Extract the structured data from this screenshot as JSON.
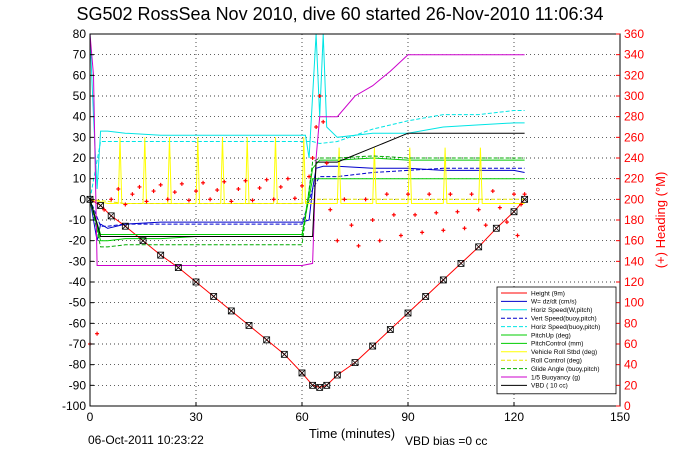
{
  "title": "SG502 RossSea Nov 2010, dive 60 started 26-Nov-2010 11:06:34",
  "footer": {
    "left": "06-Oct-2011 10:23:22",
    "right": "VBD bias =0 cc"
  },
  "colors": {
    "height": "#ff0000",
    "w": "#0000cc",
    "horiz_speed": "#00e5e5",
    "vert_speed": "#0000cc",
    "pitch_up": "#00cc00",
    "pitch_control": "#00cc00",
    "roll_stbd": "#ffff00",
    "roll_control": "#e5e500",
    "glide_angle": "#00aa00",
    "buoyancy": "#cc00cc",
    "vbd": "#000000",
    "heading": "#ff0000",
    "right_axis": "#ff0000"
  },
  "chart_data": {
    "type": "line",
    "title": "SG502 RossSea Nov 2010, dive 60 started 26-Nov-2010 11:06:34",
    "xlabel": "Time (minutes)",
    "ylabel": "",
    "ylabel_right": "(+) Heading (°M)",
    "xlim": [
      0,
      150
    ],
    "ylim": [
      -100,
      80
    ],
    "ylim_right": [
      0,
      360
    ],
    "xticks": [
      0,
      30,
      60,
      90,
      120,
      150
    ],
    "yticks": [
      -100,
      -90,
      -80,
      -70,
      -60,
      -50,
      -40,
      -30,
      -20,
      -10,
      0,
      10,
      20,
      30,
      40,
      50,
      60,
      70,
      80
    ],
    "yticks_right": [
      0,
      20,
      40,
      60,
      80,
      100,
      120,
      140,
      160,
      180,
      200,
      220,
      240,
      260,
      280,
      300,
      320,
      340,
      360
    ],
    "grid": true,
    "legend_position": "bottom-right",
    "legend": [
      "Height (9m)",
      "W= dz/dt (cm/s)",
      "Horiz Speed(W,pitch)",
      "Vert Speed(buoy,pitch)",
      "Horiz Speed(buoy,pitch)",
      "PitchUp (deg)",
      "PitchControl (mm)",
      "Vehicle Roll Stbd (deg)",
      "Roll Control (deg)",
      "Glide Angle (buoy,pitch)",
      "1/5 Buoyancy (g)",
      "VBD ( 10 cc)"
    ],
    "series": [
      {
        "name": "Height (9m)",
        "x": [
          0,
          3,
          6,
          10,
          15,
          20,
          25,
          30,
          35,
          40,
          45,
          50,
          55,
          60,
          63,
          65,
          67,
          70,
          75,
          80,
          85,
          90,
          95,
          100,
          105,
          110,
          115,
          120,
          123
        ],
        "y": [
          0,
          -3,
          -8,
          -13,
          -20,
          -27,
          -33,
          -40,
          -47,
          -54,
          -61,
          -68,
          -75,
          -84,
          -90,
          -91,
          -90,
          -85,
          -79,
          -71,
          -63,
          -55,
          -47,
          -39,
          -31,
          -23,
          -14,
          -6,
          0
        ]
      },
      {
        "name": "W= dz/dt (cm/s)",
        "x": [
          0,
          1,
          2,
          3,
          5,
          10,
          20,
          30,
          40,
          50,
          60,
          62,
          63,
          64,
          66,
          70,
          80,
          90,
          100,
          110,
          120,
          123
        ],
        "y": [
          0,
          -10,
          -20,
          -12,
          -14,
          -12,
          -11,
          -11,
          -11,
          -11,
          -11,
          -10,
          5,
          15,
          16,
          16,
          15,
          15,
          14,
          14,
          14,
          13
        ]
      },
      {
        "name": "Horiz Speed(W,pitch)",
        "x": [
          0,
          1,
          2,
          3,
          5,
          10,
          20,
          30,
          40,
          50,
          60,
          61,
          62,
          64,
          65,
          66,
          67,
          70,
          80,
          90,
          100,
          110,
          120,
          123
        ],
        "y": [
          80,
          40,
          5,
          33,
          33,
          32,
          31,
          31,
          31,
          31,
          31,
          31,
          20,
          80,
          40,
          80,
          35,
          30,
          32,
          32,
          35,
          36,
          37,
          37
        ]
      },
      {
        "name": "Vert Speed(buoy,pitch)",
        "x": [
          0,
          3,
          5,
          10,
          20,
          30,
          40,
          50,
          60,
          63,
          65,
          70,
          80,
          90,
          100,
          110,
          120,
          123
        ],
        "y": [
          0,
          -13,
          -13,
          -12,
          -12,
          -12,
          -12,
          -12,
          -12,
          5,
          11,
          11,
          13,
          14,
          15,
          15,
          15,
          15
        ]
      },
      {
        "name": "Horiz Speed(buoy,pitch)",
        "x": [
          0,
          3,
          5,
          10,
          20,
          30,
          40,
          50,
          60,
          63,
          65,
          70,
          80,
          90,
          100,
          110,
          120,
          123
        ],
        "y": [
          0,
          28,
          28,
          28,
          28,
          28,
          28,
          28,
          28,
          28,
          27,
          28,
          34,
          38,
          41,
          41,
          43,
          43
        ]
      },
      {
        "name": "PitchUp (deg)",
        "x": [
          0,
          3,
          5,
          10,
          20,
          30,
          40,
          50,
          60,
          63,
          65,
          70,
          80,
          90,
          100,
          110,
          120,
          123
        ],
        "y": [
          0,
          -20,
          -20,
          -19,
          -19,
          -18,
          -18,
          -18,
          -18,
          15,
          19,
          19,
          20,
          19,
          19,
          19,
          19,
          19
        ]
      },
      {
        "name": "PitchControl (mm)",
        "x": [
          0,
          3,
          5,
          10,
          20,
          30,
          40,
          50,
          60,
          63,
          65,
          70,
          80,
          90,
          100,
          110,
          120,
          123
        ],
        "y": [
          0,
          -17,
          -17,
          -17,
          -17,
          -17,
          -17,
          -17,
          -17,
          10,
          10,
          10,
          10,
          10,
          10,
          10,
          10,
          10
        ]
      },
      {
        "name": "Vehicle Roll Stbd (deg)",
        "x": [
          0,
          5,
          8,
          8.5,
          9,
          15,
          15.5,
          16,
          22,
          22.5,
          23,
          30,
          30.5,
          31,
          37,
          37.5,
          38,
          44,
          44.5,
          45,
          52,
          52.5,
          53,
          60,
          60.5,
          61,
          70,
          70.5,
          71,
          80,
          80.5,
          81,
          90,
          90.5,
          91,
          100,
          100.5,
          101,
          110,
          110.5,
          111,
          120,
          123
        ],
        "y": [
          0,
          -2,
          -2,
          30,
          -2,
          -2,
          30,
          -2,
          -2,
          30,
          -2,
          -2,
          30,
          -2,
          -2,
          30,
          -2,
          -2,
          30,
          -2,
          -2,
          30,
          -2,
          -2,
          30,
          -2,
          -2,
          25,
          -2,
          -2,
          25,
          -2,
          -2,
          25,
          -2,
          -2,
          25,
          -2,
          -2,
          25,
          -2,
          -2,
          -2
        ]
      },
      {
        "name": "Roll Control (deg)",
        "x": [
          0,
          10,
          20,
          30,
          40,
          50,
          60,
          63,
          70,
          80,
          90,
          100,
          110,
          120,
          123
        ],
        "y": [
          0,
          -2,
          -2,
          -2,
          -2,
          -2,
          -2,
          0,
          0,
          0,
          0,
          0,
          0,
          0,
          0
        ]
      },
      {
        "name": "Glide Angle (buoy,pitch)",
        "x": [
          0,
          3,
          5,
          10,
          20,
          30,
          40,
          50,
          60,
          63,
          65,
          70,
          80,
          90,
          100,
          110,
          120,
          123
        ],
        "y": [
          0,
          -23,
          -23,
          -22,
          -22,
          -22,
          -22,
          -22,
          -22,
          18,
          20,
          20,
          21,
          20,
          20,
          20,
          20,
          20
        ]
      },
      {
        "name": "1/5 Buoyancy (g)",
        "x": [
          0,
          1,
          2,
          5,
          10,
          20,
          30,
          40,
          50,
          60,
          63,
          64,
          65,
          70,
          75,
          80,
          85,
          90,
          100,
          110,
          120,
          123
        ],
        "y": [
          80,
          60,
          -32,
          -32,
          -32,
          -32,
          -32,
          -32,
          -32,
          -32,
          -31,
          20,
          40,
          40,
          50,
          55,
          62,
          70,
          70,
          70,
          70,
          70
        ]
      },
      {
        "name": "VBD ( 10 cc)",
        "x": [
          0,
          3,
          5,
          10,
          20,
          30,
          40,
          50,
          60,
          63,
          64,
          65,
          70,
          80,
          90,
          100,
          110,
          120,
          123
        ],
        "y": [
          0,
          -18,
          -18,
          -18,
          -18,
          -18,
          -18,
          -18,
          -18,
          -18,
          18,
          18,
          18,
          25,
          32,
          32,
          32,
          32,
          32
        ]
      },
      {
        "name": "(+) Heading (°M)",
        "axis": "right",
        "x": [
          0,
          2,
          4,
          6,
          8,
          10,
          12,
          14,
          16,
          18,
          20,
          22,
          24,
          26,
          28,
          30,
          32,
          34,
          36,
          38,
          40,
          42,
          44,
          46,
          48,
          50,
          52,
          54,
          56,
          58,
          60,
          62,
          63,
          64,
          65,
          66,
          67,
          68,
          70,
          72,
          74,
          76,
          78,
          80,
          82,
          84,
          86,
          88,
          90,
          92,
          94,
          96,
          98,
          100,
          102,
          104,
          106,
          108,
          110,
          112,
          114,
          116,
          118,
          120,
          121,
          122,
          123
        ],
        "y": [
          60,
          70,
          190,
          200,
          210,
          195,
          205,
          212,
          198,
          208,
          214,
          200,
          207,
          215,
          199,
          208,
          216,
          200,
          209,
          217,
          198,
          210,
          218,
          199,
          211,
          219,
          200,
          212,
          220,
          201,
          213,
          222,
          240,
          270,
          300,
          275,
          235,
          190,
          160,
          200,
          175,
          155,
          200,
          180,
          160,
          205,
          185,
          165,
          205,
          185,
          168,
          205,
          187,
          170,
          205,
          188,
          172,
          205,
          190,
          175,
          208,
          192,
          178,
          205,
          165,
          195,
          205
        ]
      }
    ]
  }
}
